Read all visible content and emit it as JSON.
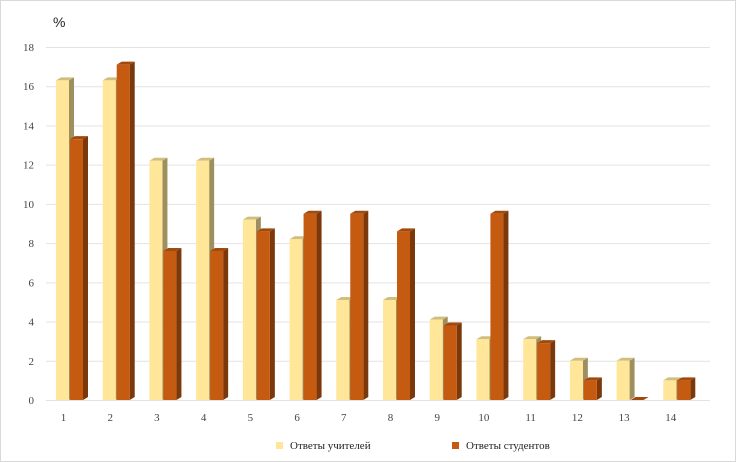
{
  "chart_data": {
    "type": "bar",
    "ylabel": "%",
    "categories": [
      "1",
      "2",
      "3",
      "4",
      "5",
      "6",
      "7",
      "8",
      "9",
      "10",
      "11",
      "12",
      "13",
      "14"
    ],
    "ylim": [
      0,
      18
    ],
    "yticks": [
      0,
      2,
      4,
      6,
      8,
      10,
      12,
      14,
      16,
      18
    ],
    "grid": true,
    "legend_position": "bottom",
    "series": [
      {
        "name": "Ответы учителей",
        "color": "#FFE699",
        "values": [
          16.3,
          16.3,
          12.2,
          12.2,
          9.2,
          8.2,
          5.1,
          5.1,
          4.1,
          3.1,
          3.1,
          2.0,
          2.0,
          1.0
        ]
      },
      {
        "name": "Ответы студентов",
        "color": "#C55A11",
        "values": [
          13.3,
          17.1,
          7.6,
          7.6,
          8.6,
          9.5,
          9.5,
          8.6,
          3.8,
          9.5,
          2.9,
          1.0,
          0.0,
          1.0
        ]
      }
    ]
  }
}
